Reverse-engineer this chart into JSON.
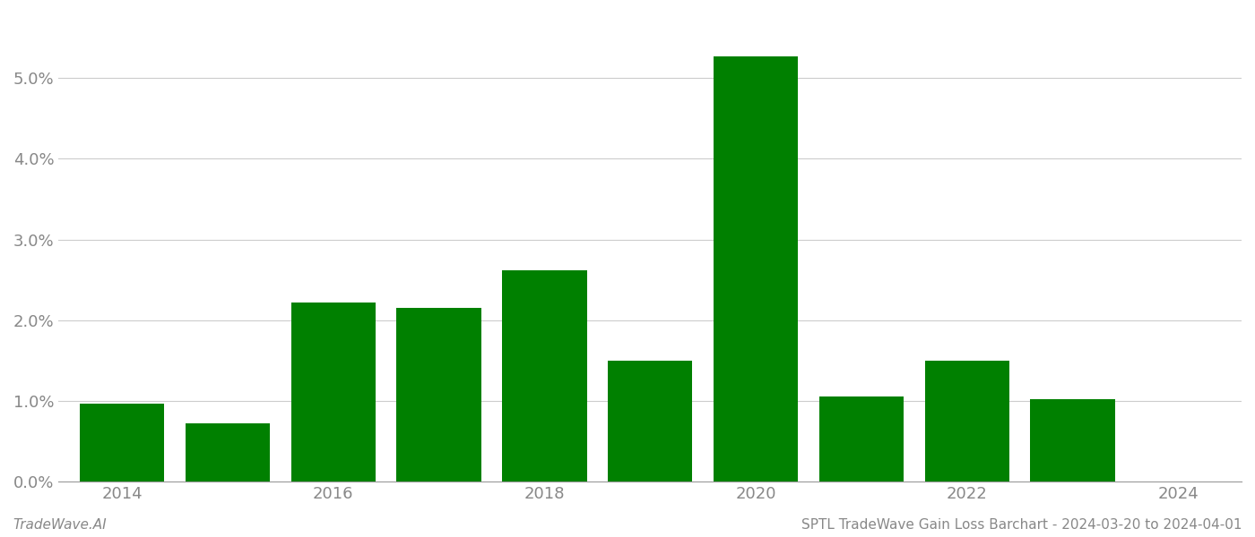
{
  "years": [
    2014,
    2015,
    2016,
    2017,
    2018,
    2019,
    2020,
    2021,
    2022,
    2023,
    2024
  ],
  "values": [
    0.0097,
    0.0072,
    0.0222,
    0.0215,
    0.0262,
    0.015,
    0.0527,
    0.0105,
    0.015,
    0.0102,
    0.0
  ],
  "bar_color": "#008000",
  "background_color": "#ffffff",
  "grid_color": "#cccccc",
  "axis_color": "#999999",
  "tick_color": "#888888",
  "ylim": [
    0,
    0.058
  ],
  "yticks": [
    0.0,
    0.01,
    0.02,
    0.03,
    0.04,
    0.05
  ],
  "xtick_labels": [
    "2014",
    "2016",
    "2018",
    "2020",
    "2022",
    "2024"
  ],
  "footer_left": "TradeWave.AI",
  "footer_right": "SPTL TradeWave Gain Loss Barchart - 2024-03-20 to 2024-04-01",
  "footer_fontsize": 11,
  "tick_fontsize": 13,
  "bar_width": 0.8
}
